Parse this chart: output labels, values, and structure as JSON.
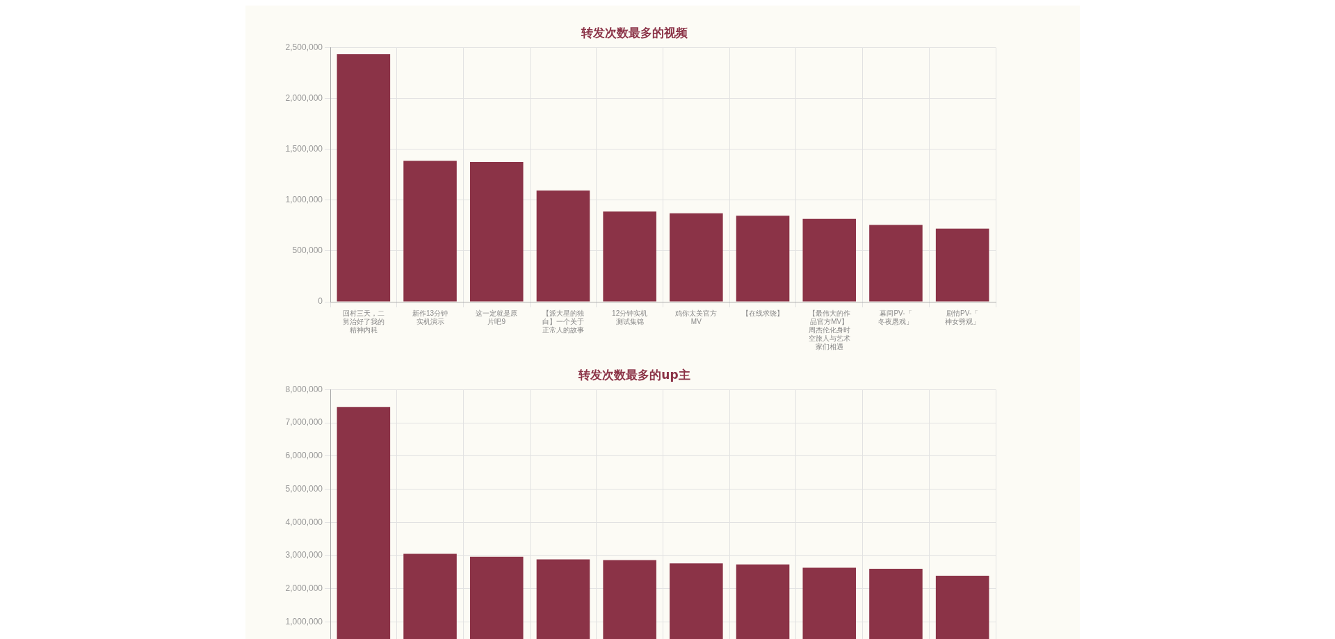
{
  "chart_data": [
    {
      "type": "bar",
      "title": "转发次数最多的视频",
      "categories": [
        "回村三天，二舅治好了我的精神内耗",
        "新作13分钟实机演示",
        "这一定就是原片吧9",
        "【派大星的独白】一个关于正常人的故事",
        "12分钟实机测试集锦",
        "鸡你太美官方MV",
        "【在线求饶】",
        "【最伟大的作品官方MV】周杰伦化身时空旅人与艺术家们相遇",
        "幕间PV-「冬夜愚戏」",
        "剧情PV-「神女劈观」"
      ],
      "values": [
        2435000,
        1387000,
        1374000,
        1094000,
        888000,
        870000,
        847000,
        815000,
        755000,
        719000
      ],
      "color": "#8b3347",
      "ylim": [
        0,
        2500000
      ],
      "yticks": [
        0,
        {
          "value": 500000,
          "label": "500,000"
        },
        {
          "value": 1000000,
          "label": "1,000,000"
        },
        {
          "value": 1500000,
          "label": "1,500,000"
        },
        {
          "value": 2000000,
          "label": "2,000,000"
        },
        {
          "value": 2500000,
          "label": "2,500,000"
        }
      ],
      "grid": true,
      "legend": false
    },
    {
      "type": "bar",
      "title": "转发次数最多的up主",
      "categories": [
        null,
        null,
        null,
        null,
        null,
        null,
        null,
        null,
        null,
        null
      ],
      "values": [
        7480000,
        3050000,
        2960000,
        2880000,
        2860000,
        2760000,
        2730000,
        2630000,
        2600000,
        2390000
      ],
      "color": "#8b3347",
      "ylim": [
        0,
        8000000
      ],
      "yticks": [
        {
          "value": 1000000,
          "label": "1,000,000"
        },
        {
          "value": 2000000,
          "label": "2,000,000"
        },
        {
          "value": 3000000,
          "label": "3,000,000"
        },
        {
          "value": 4000000,
          "label": "4,000,000"
        },
        {
          "value": 5000000,
          "label": "5,000,000"
        },
        {
          "value": 6000000,
          "label": "6,000,000"
        },
        {
          "value": 7000000,
          "label": "7,000,000"
        },
        {
          "value": 8000000,
          "label": "8,000,000"
        }
      ],
      "grid": true,
      "legend": false
    }
  ]
}
